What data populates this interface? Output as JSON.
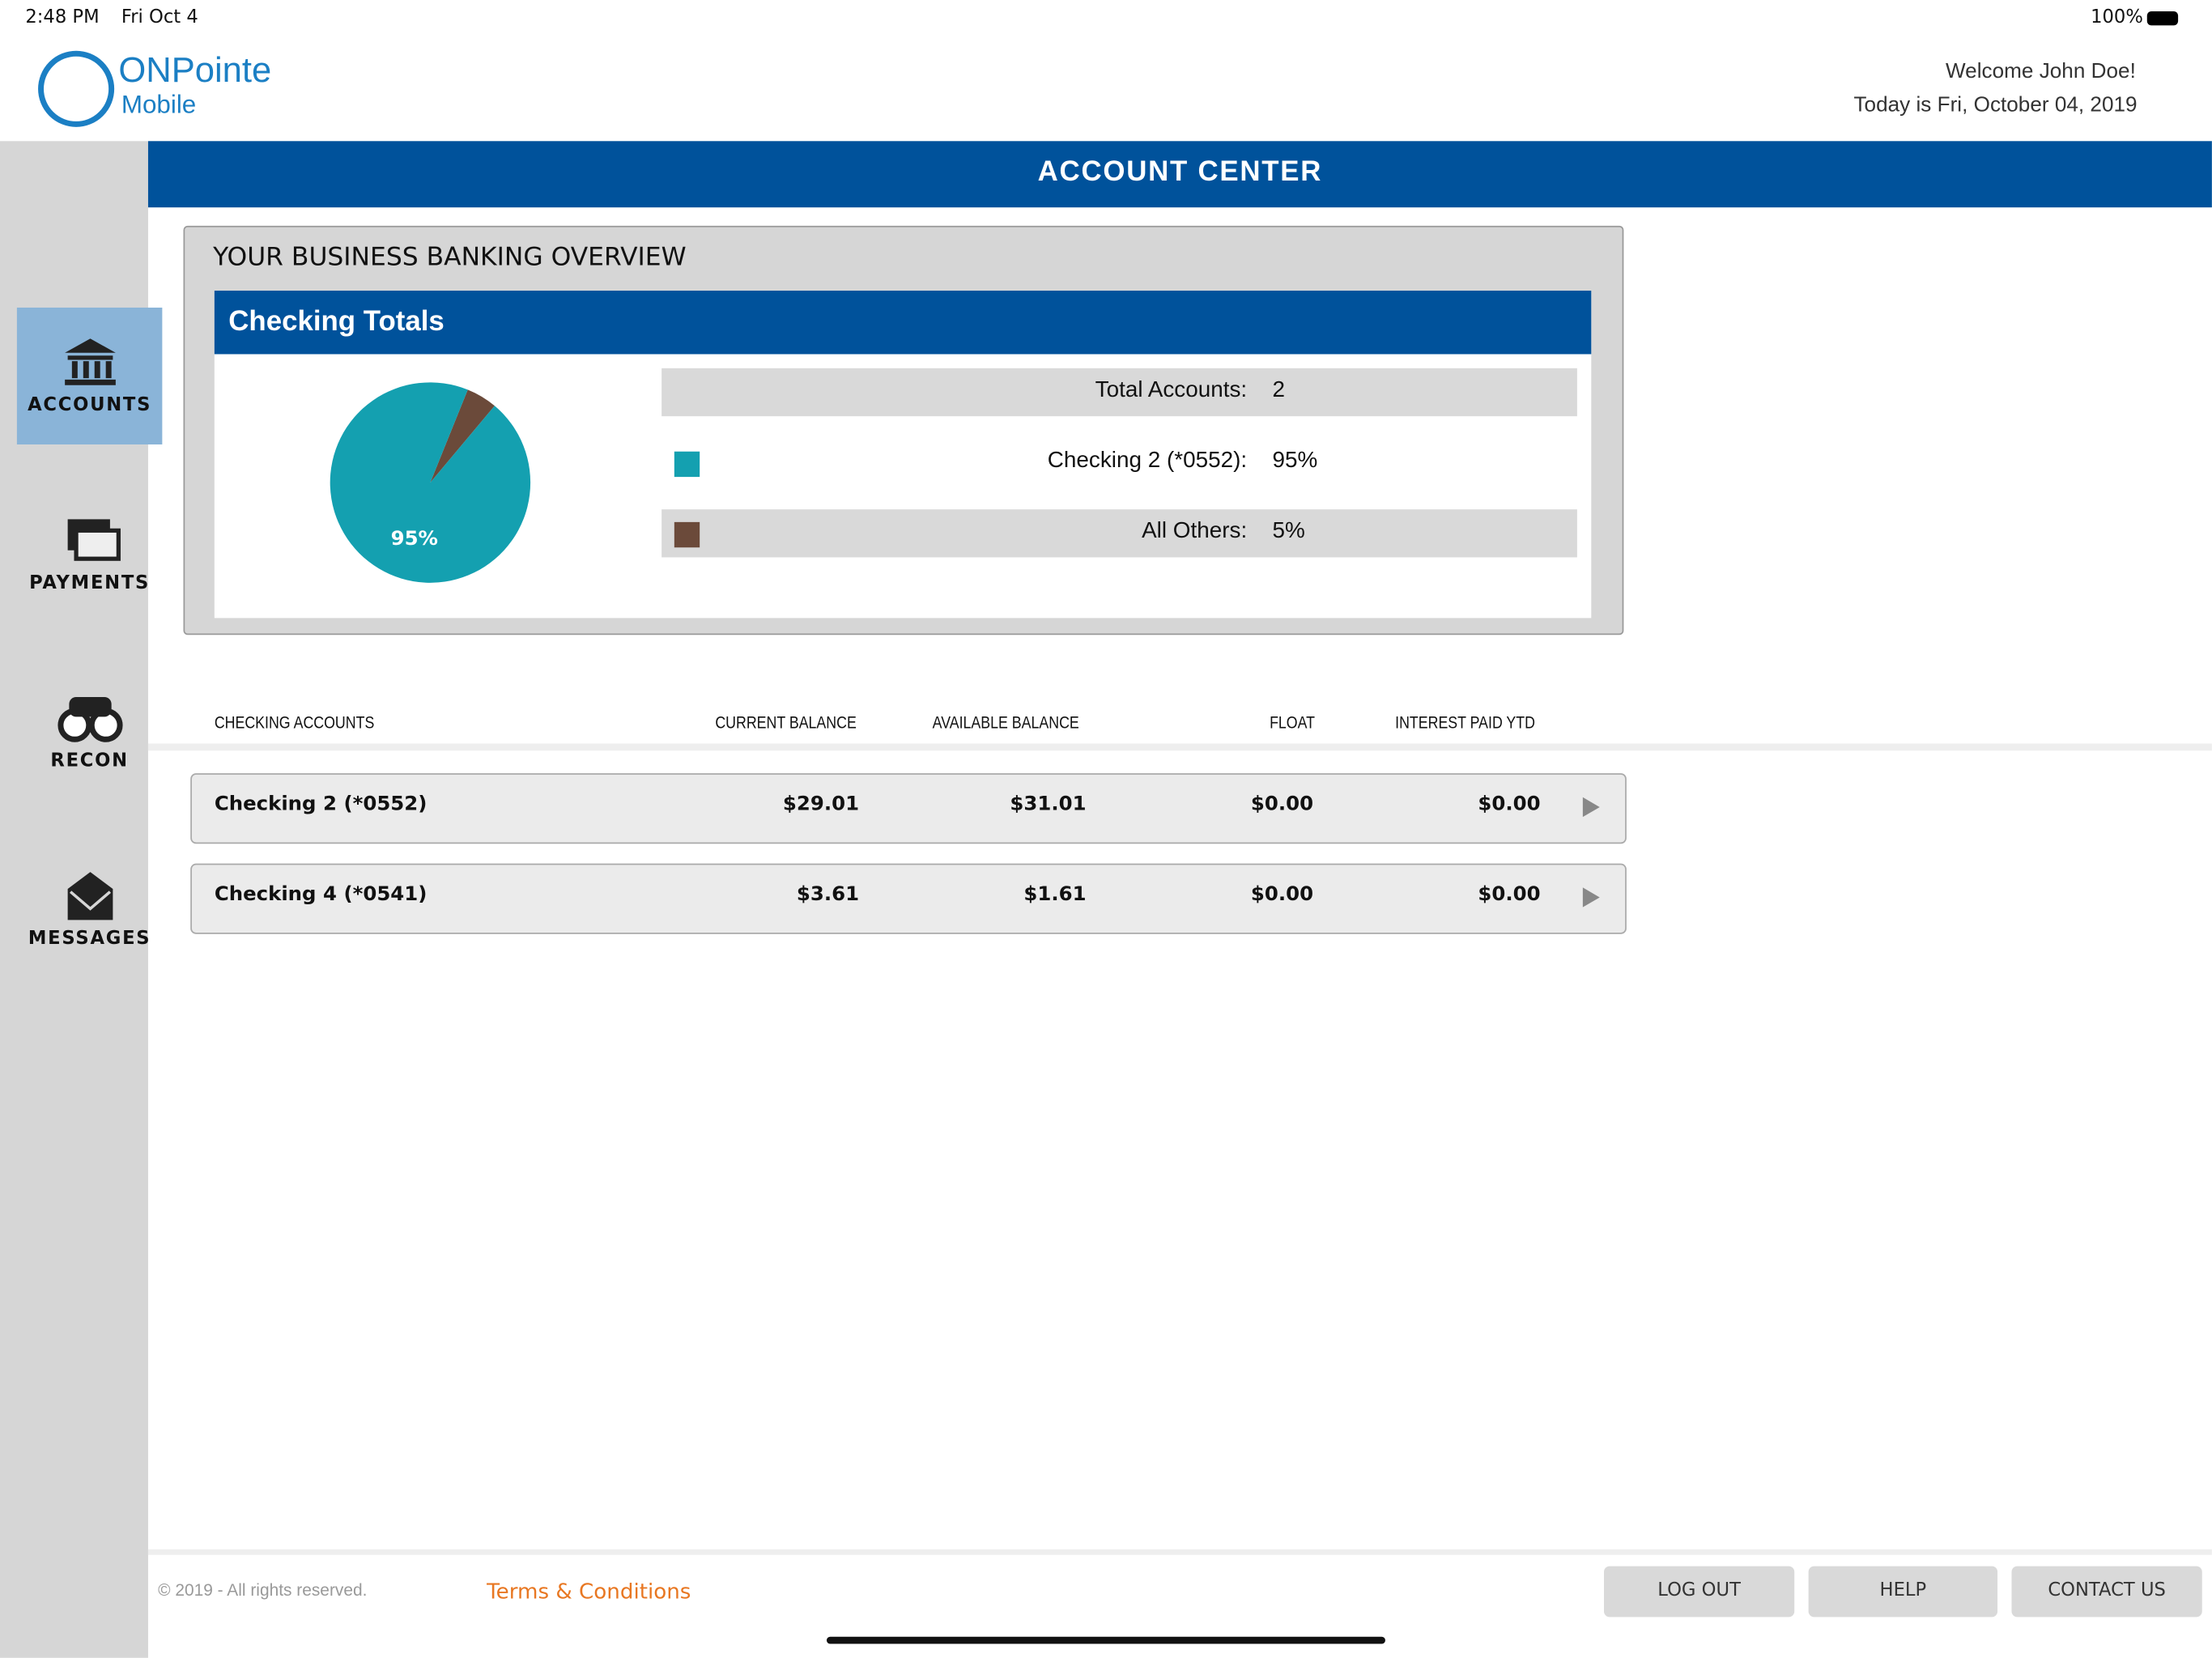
{
  "status_bar": {
    "time": "2:48 PM",
    "date": "Fri Oct 4",
    "battery": "100%"
  },
  "header": {
    "logo_main": "ONPointe",
    "logo_sub": "Mobile",
    "welcome": "Welcome John Doe!",
    "today": "Today is Fri, October 04, 2019"
  },
  "title": "ACCOUNT CENTER",
  "nav": [
    "ACCOUNTS",
    "PAYMENTS",
    "RECON",
    "MESSAGES"
  ],
  "overview": {
    "title": "YOUR BUSINESS BANKING OVERVIEW",
    "panel_title": "Checking Totals",
    "total_label": "Total Accounts:",
    "total_value": 2,
    "chart": {
      "type": "pie",
      "slices": [
        {
          "name": "Checking 2 (*0552):",
          "value": 95,
          "label": "95%",
          "color": "#14a0b0"
        },
        {
          "name": "All Others:",
          "value": 5,
          "label": "5%",
          "color": "#6b4a3a"
        }
      ]
    }
  },
  "table": {
    "headers": [
      "CHECKING ACCOUNTS",
      "CURRENT BALANCE",
      "AVAILABLE BALANCE",
      "FLOAT",
      "INTEREST PAID YTD"
    ],
    "rows": [
      [
        "Checking 2 (*0552)",
        "$29.01",
        "$31.01",
        "$0.00",
        "$0.00"
      ],
      [
        "Checking 4 (*0541)",
        "$3.61",
        "$1.61",
        "$0.00",
        "$0.00"
      ]
    ]
  },
  "footer": {
    "copyright": "© 2019 - All rights reserved.",
    "terms": "Terms & Conditions",
    "buttons": [
      "LOG OUT",
      "HELP",
      "CONTACT US"
    ]
  }
}
